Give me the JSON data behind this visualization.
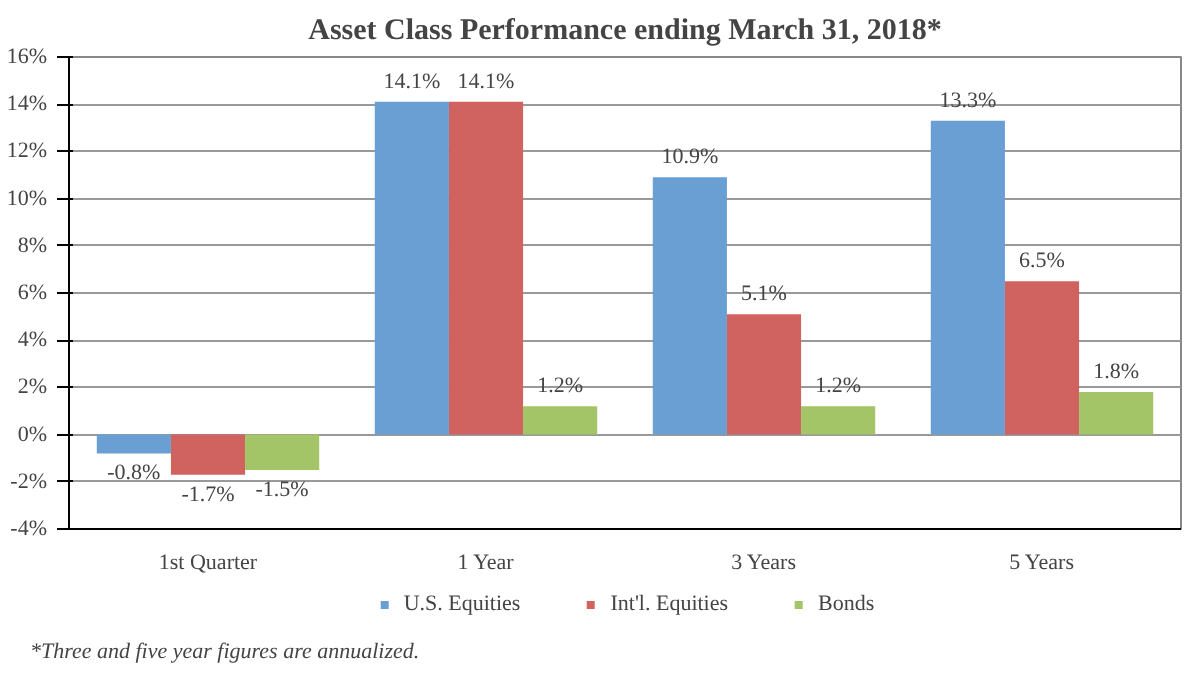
{
  "chart_data": {
    "type": "bar",
    "title": "Asset Class Performance ending March 31, 2018*",
    "categories": [
      "1st Quarter",
      "1 Year",
      "3 Years",
      "5 Years"
    ],
    "series": [
      {
        "name": "U.S. Equities",
        "color": "#6a9fd4",
        "values": [
          -0.8,
          14.1,
          10.9,
          13.3
        ],
        "value_labels": [
          "-0.8%",
          "14.1%",
          "10.9%",
          "13.3%"
        ]
      },
      {
        "name": "Int'l. Equities",
        "color": "#d0625f",
        "values": [
          -1.7,
          14.1,
          5.1,
          6.5
        ],
        "value_labels": [
          "-1.7%",
          "14.1%",
          "5.1%",
          "6.5%"
        ]
      },
      {
        "name": "Bonds",
        "color": "#a3c467",
        "values": [
          -1.5,
          1.2,
          1.2,
          1.8
        ],
        "value_labels": [
          "-1.5%",
          "1.2%",
          "1.2%",
          "1.8%"
        ]
      }
    ],
    "ylim": [
      -4,
      16
    ],
    "yticks": [
      {
        "value": -4,
        "label": "-4%"
      },
      {
        "value": -2,
        "label": "-2%"
      },
      {
        "value": 0,
        "label": "0%"
      },
      {
        "value": 2,
        "label": "2%"
      },
      {
        "value": 4,
        "label": "4%"
      },
      {
        "value": 6,
        "label": "6%"
      },
      {
        "value": 8,
        "label": "8%"
      },
      {
        "value": 10,
        "label": "10%"
      },
      {
        "value": 12,
        "label": "12%"
      },
      {
        "value": 14,
        "label": "14%"
      },
      {
        "value": 16,
        "label": "16%"
      }
    ],
    "grid": "y",
    "legend": "bottom",
    "annotations": [
      "*Three and five year figures are annualized."
    ]
  }
}
